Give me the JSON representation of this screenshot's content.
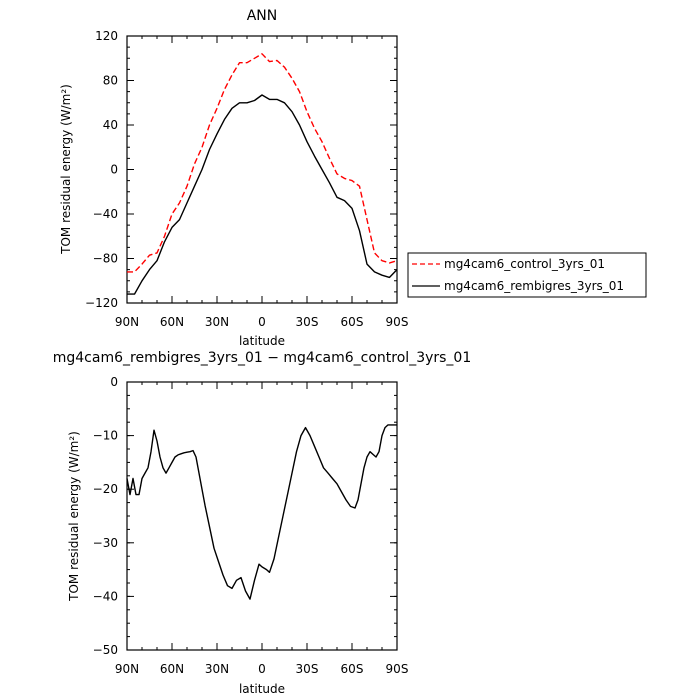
{
  "chart_data": [
    {
      "type": "line",
      "title": "ANN",
      "xlabel": "latitude",
      "ylabel": "TOM residual energy (W/m²)",
      "xlim": [
        90,
        -90
      ],
      "ylim": [
        -120,
        120
      ],
      "xticks": [
        90,
        60,
        30,
        0,
        -30,
        -60,
        -90
      ],
      "xtick_labels": [
        "90N",
        "60N",
        "30N",
        "0",
        "30S",
        "60S",
        "90S"
      ],
      "yticks": [
        120,
        80,
        40,
        0,
        -40,
        -80,
        -120
      ],
      "ytick_labels": [
        "120",
        "80",
        "40",
        "0",
        "−40",
        "−80",
        "−120"
      ],
      "legend_position": "right",
      "series": [
        {
          "name": "mg4cam6_control_3yrs_01",
          "color": "#ff0000",
          "dash": "dashed",
          "x": [
            90,
            85,
            80,
            75,
            70,
            65,
            60,
            55,
            50,
            45,
            40,
            35,
            30,
            25,
            20,
            15,
            10,
            5,
            0,
            -5,
            -10,
            -15,
            -20,
            -25,
            -30,
            -35,
            -40,
            -45,
            -50,
            -55,
            -60,
            -65,
            -70,
            -75,
            -80,
            -85,
            -90
          ],
          "y": [
            -92,
            -92,
            -85,
            -77,
            -75,
            -60,
            -40,
            -30,
            -15,
            5,
            20,
            40,
            55,
            72,
            85,
            96,
            96,
            100,
            104,
            97,
            98,
            92,
            82,
            70,
            52,
            37,
            25,
            10,
            -4,
            -8,
            -10,
            -15,
            -45,
            -75,
            -82,
            -84,
            -82
          ]
        },
        {
          "name": "mg4cam6_rembigres_3yrs_01",
          "color": "#000000",
          "dash": "solid",
          "x": [
            90,
            85,
            80,
            75,
            70,
            65,
            60,
            55,
            50,
            45,
            40,
            35,
            30,
            25,
            20,
            15,
            10,
            5,
            0,
            -5,
            -10,
            -15,
            -20,
            -25,
            -30,
            -35,
            -40,
            -45,
            -50,
            -55,
            -60,
            -65,
            -70,
            -75,
            -80,
            -85,
            -90
          ],
          "y": [
            -112,
            -112,
            -100,
            -90,
            -82,
            -65,
            -52,
            -45,
            -30,
            -15,
            0,
            18,
            32,
            45,
            55,
            60,
            60,
            62,
            67,
            63,
            63,
            60,
            52,
            40,
            25,
            12,
            0,
            -12,
            -25,
            -28,
            -35,
            -55,
            -85,
            -92,
            -95,
            -97,
            -90
          ]
        }
      ]
    },
    {
      "type": "line",
      "title": "mg4cam6_rembigres_3yrs_01 − mg4cam6_control_3yrs_01",
      "xlabel": "latitude",
      "ylabel": "TOM residual energy (W/m²)",
      "xlim": [
        90,
        -90
      ],
      "ylim": [
        -50,
        0
      ],
      "xticks": [
        90,
        60,
        30,
        0,
        -30,
        -60,
        -90
      ],
      "xtick_labels": [
        "90N",
        "60N",
        "30N",
        "0",
        "30S",
        "60S",
        "90S"
      ],
      "yticks": [
        0,
        -10,
        -20,
        -30,
        -40,
        -50
      ],
      "ytick_labels": [
        "0",
        "−10",
        "−20",
        "−30",
        "−40",
        "−50"
      ],
      "series": [
        {
          "color": "#000000",
          "dash": "solid",
          "x": [
            90,
            88,
            86,
            84,
            82,
            80,
            78,
            76,
            74,
            72,
            70,
            68,
            66,
            64,
            62,
            60,
            58,
            56,
            54,
            52,
            50,
            48,
            46,
            44,
            42,
            40,
            38,
            35,
            32,
            29,
            26,
            23,
            20,
            17,
            14,
            11,
            8,
            5,
            2,
            0,
            -3,
            -5,
            -8,
            -11,
            -14,
            -17,
            -20,
            -23,
            -26,
            -29,
            -32,
            -35,
            -38,
            -41,
            -44,
            -47,
            -50,
            -53,
            -56,
            -59,
            -62,
            -64,
            -66,
            -68,
            -70,
            -72,
            -74,
            -76,
            -78,
            -80,
            -82,
            -84,
            -86,
            -88,
            -90
          ],
          "y": [
            -18,
            -21,
            -18,
            -21,
            -21,
            -18,
            -17,
            -16,
            -13,
            -9,
            -11,
            -14,
            -16,
            -17,
            -16,
            -15,
            -14,
            -13.6,
            -13.4,
            -13.2,
            -13.1,
            -13,
            -12.8,
            -14,
            -17,
            -20,
            -23,
            -27,
            -31,
            -33.5,
            -36,
            -38,
            -38.5,
            -37,
            -36.5,
            -39,
            -40.5,
            -37,
            -34,
            -34.5,
            -35,
            -35.5,
            -33,
            -29,
            -25,
            -21,
            -17,
            -13,
            -10,
            -8.5,
            -10,
            -12,
            -14,
            -16,
            -17,
            -18,
            -19,
            -20.5,
            -22,
            -23.2,
            -23.5,
            -22,
            -19,
            -16,
            -14,
            -13,
            -13.5,
            -14,
            -13,
            -10,
            -8.5,
            -8,
            -8,
            -8,
            -8
          ]
        }
      ]
    }
  ]
}
